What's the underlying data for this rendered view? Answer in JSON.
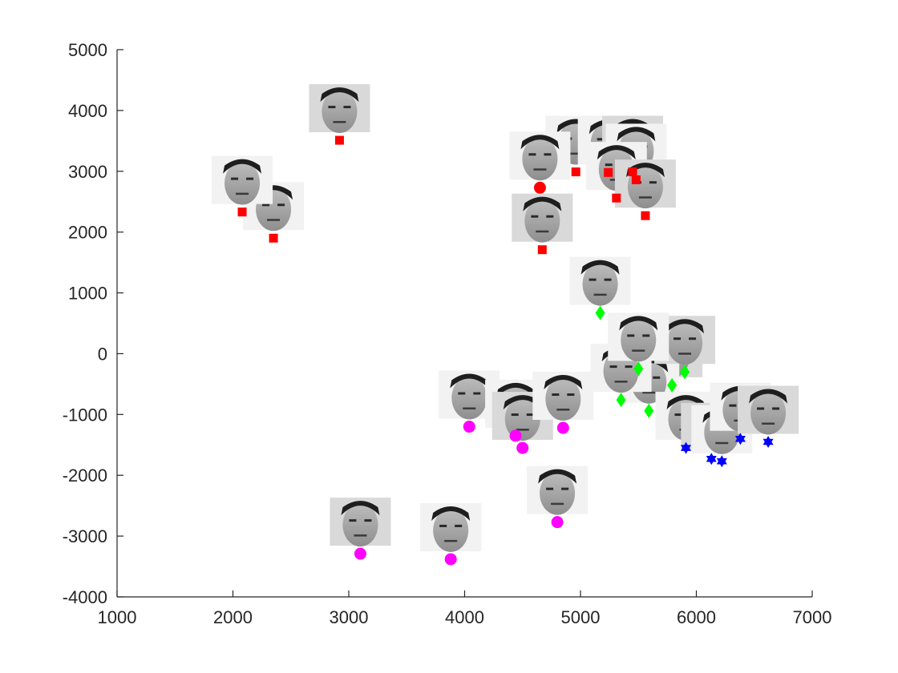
{
  "chart_data": {
    "type": "scatter",
    "title": "",
    "xlabel": "",
    "ylabel": "",
    "xlim": [
      1000,
      7000
    ],
    "ylim": [
      -4000,
      5000
    ],
    "xticks": [
      1000,
      2000,
      3000,
      4000,
      5000,
      6000,
      7000
    ],
    "yticks": [
      -4000,
      -3000,
      -2000,
      -1000,
      0,
      1000,
      2000,
      3000,
      4000,
      5000
    ],
    "xtick_labels": [
      "1000",
      "2000",
      "3000",
      "4000",
      "5000",
      "6000",
      "7000"
    ],
    "ytick_labels": [
      "-4000",
      "-3000",
      "-2000",
      "-1000",
      "0",
      "1000",
      "2000",
      "3000",
      "4000",
      "5000"
    ],
    "grid": false,
    "marker_images": "face photo thumbnails above each point",
    "series": [
      {
        "marker": "square",
        "color": "#ff0000",
        "points": [
          [
            2920,
            3510
          ],
          [
            2350,
            1900
          ],
          [
            2080,
            2330
          ],
          [
            4670,
            1710
          ],
          [
            4960,
            2990
          ],
          [
            5240,
            2980
          ],
          [
            5450,
            2990
          ],
          [
            5480,
            2860
          ],
          [
            5310,
            2560
          ],
          [
            5560,
            2270
          ]
        ]
      },
      {
        "marker": "circle",
        "color": "#ff0000",
        "points": [
          [
            4650,
            2730
          ]
        ]
      },
      {
        "marker": "diamond",
        "color": "#00ff00",
        "points": [
          [
            5170,
            670
          ],
          [
            5790,
            -520
          ],
          [
            5590,
            -940
          ],
          [
            5350,
            -760
          ],
          [
            5900,
            -300
          ],
          [
            5500,
            -250
          ]
        ]
      },
      {
        "marker": "hexagram",
        "color": "#0000ff",
        "points": [
          [
            5910,
            -1550
          ],
          [
            6130,
            -1730
          ],
          [
            6220,
            -1770
          ],
          [
            6380,
            -1400
          ],
          [
            6620,
            -1450
          ]
        ]
      },
      {
        "marker": "circle",
        "color": "#ff00ff",
        "points": [
          [
            4040,
            -1200
          ],
          [
            4440,
            -1350
          ],
          [
            4500,
            -1550
          ],
          [
            4850,
            -1220
          ],
          [
            4800,
            -2770
          ],
          [
            3100,
            -3290
          ],
          [
            3880,
            -3380
          ]
        ]
      }
    ]
  }
}
